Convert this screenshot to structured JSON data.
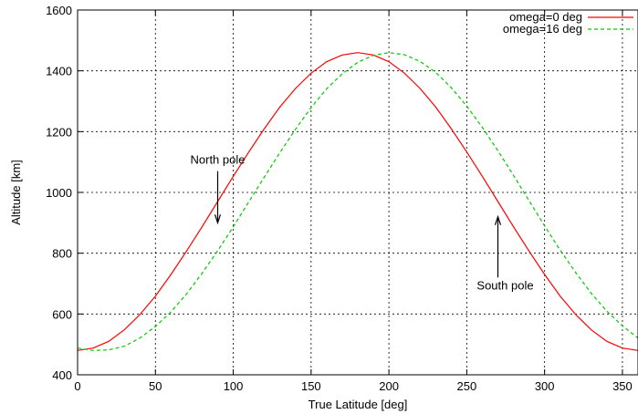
{
  "chart_data": {
    "type": "line",
    "xlabel": "True Latitude [deg]",
    "ylabel": "Altitude [km]",
    "xlim": [
      0,
      360
    ],
    "ylim": [
      400,
      1600
    ],
    "xticks": [
      0,
      50,
      100,
      150,
      200,
      250,
      300,
      350
    ],
    "yticks": [
      400,
      600,
      800,
      1000,
      1200,
      1400,
      1600
    ],
    "grid": true,
    "legend_position": "top-right",
    "series": [
      {
        "name": "omega=0 deg",
        "color": "#ff0000",
        "dash": "solid",
        "x": [
          0,
          10,
          20,
          30,
          40,
          50,
          60,
          70,
          80,
          90,
          100,
          110,
          120,
          130,
          140,
          150,
          160,
          170,
          180,
          190,
          200,
          210,
          220,
          230,
          240,
          250,
          260,
          270,
          280,
          290,
          300,
          310,
          320,
          330,
          340,
          350,
          360
        ],
        "y": [
          480,
          488,
          510,
          548,
          598,
          659,
          730,
          807,
          887,
          970,
          1053,
          1133,
          1210,
          1281,
          1342,
          1392,
          1430,
          1452,
          1460,
          1452,
          1430,
          1392,
          1342,
          1281,
          1210,
          1133,
          1053,
          970,
          887,
          807,
          730,
          659,
          598,
          548,
          510,
          488,
          480
        ]
      },
      {
        "name": "omega=16 deg",
        "color": "#00cc00",
        "dash": "dashed",
        "x": [
          0,
          10,
          20,
          30,
          40,
          50,
          60,
          70,
          80,
          90,
          100,
          110,
          120,
          130,
          140,
          150,
          160,
          170,
          180,
          190,
          200,
          210,
          220,
          230,
          240,
          250,
          260,
          270,
          280,
          290,
          300,
          310,
          320,
          330,
          340,
          350,
          360
        ],
        "y": [
          488,
          480,
          482,
          494,
          521,
          559,
          607,
          666,
          734,
          808,
          887,
          969,
          1051,
          1131,
          1208,
          1279,
          1341,
          1390,
          1428,
          1451,
          1460,
          1453,
          1431,
          1395,
          1345,
          1284,
          1214,
          1137,
          1056,
          973,
          890,
          810,
          736,
          668,
          609,
          561,
          521
        ]
      }
    ],
    "annotations": [
      {
        "text": "North pole",
        "arrow_tip": [
          90,
          900
        ],
        "arrow_tail": [
          90,
          1070
        ]
      },
      {
        "text": "South pole",
        "arrow_tip": [
          270,
          920
        ],
        "arrow_tail": [
          270,
          720
        ]
      }
    ]
  }
}
